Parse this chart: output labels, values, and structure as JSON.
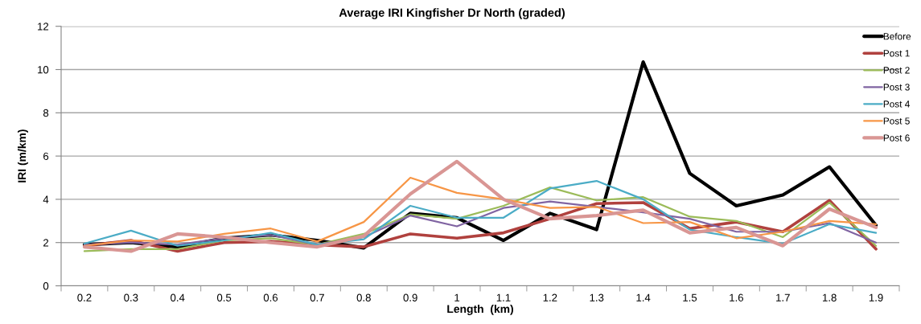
{
  "chart_data": {
    "type": "line",
    "title": "Average IRI Kingfisher Dr North (graded)",
    "xlabel": "Length  (km)",
    "ylabel": "IRI (m/km)",
    "categories": [
      "0.2",
      "0.3",
      "0.4",
      "0.5",
      "0.6",
      "0.7",
      "0.8",
      "0.9",
      "1",
      "1.1",
      "1.2",
      "1.3",
      "1.4",
      "1.5",
      "1.6",
      "1.7",
      "1.8",
      "1.9"
    ],
    "series": [
      {
        "name": "Before",
        "color": "#000000",
        "values": [
          1.9,
          2.0,
          1.8,
          2.2,
          2.35,
          2.1,
          1.75,
          3.35,
          3.15,
          2.1,
          3.35,
          2.6,
          10.35,
          5.2,
          3.7,
          4.2,
          5.5,
          2.8
        ]
      },
      {
        "name": "Post 1",
        "color": "#b0413e",
        "values": [
          1.85,
          2.1,
          1.6,
          2.0,
          2.05,
          1.9,
          1.8,
          2.4,
          2.2,
          2.45,
          3.1,
          3.8,
          3.85,
          2.65,
          2.95,
          2.5,
          3.95,
          1.7
        ]
      },
      {
        "name": "Post 2",
        "color": "#9bbb59",
        "values": [
          1.6,
          1.7,
          1.7,
          2.1,
          2.2,
          1.9,
          2.4,
          3.3,
          3.1,
          3.7,
          4.55,
          3.95,
          4.1,
          3.2,
          3.0,
          2.25,
          3.85,
          1.85
        ]
      },
      {
        "name": "Post 3",
        "color": "#8064a2",
        "values": [
          1.9,
          2.0,
          1.9,
          2.2,
          2.35,
          1.9,
          2.25,
          3.25,
          2.75,
          3.6,
          3.9,
          3.65,
          3.4,
          3.1,
          2.5,
          2.5,
          2.9,
          2.0
        ]
      },
      {
        "name": "Post 4",
        "color": "#4bacc6",
        "values": [
          1.95,
          2.55,
          1.85,
          2.1,
          2.45,
          1.9,
          2.15,
          3.7,
          3.15,
          3.15,
          4.5,
          4.85,
          4.0,
          2.6,
          2.25,
          1.95,
          2.85,
          2.45
        ]
      },
      {
        "name": "Post 5",
        "color": "#f79646",
        "values": [
          1.85,
          2.1,
          2.05,
          2.4,
          2.65,
          2.05,
          2.95,
          5.0,
          4.3,
          4.0,
          3.6,
          3.65,
          2.9,
          2.95,
          2.2,
          2.5,
          3.0,
          2.85
        ]
      },
      {
        "name": "Post 6",
        "color": "#d99694",
        "values": [
          1.8,
          1.6,
          2.4,
          2.25,
          2.0,
          1.8,
          2.3,
          4.25,
          5.75,
          4.0,
          3.1,
          3.25,
          3.5,
          2.45,
          2.7,
          1.85,
          3.55,
          2.7
        ]
      }
    ],
    "ylim": [
      0,
      12
    ],
    "yticks": [
      0,
      2,
      4,
      6,
      8,
      10,
      12
    ],
    "grid": "y",
    "legend": "top right"
  }
}
